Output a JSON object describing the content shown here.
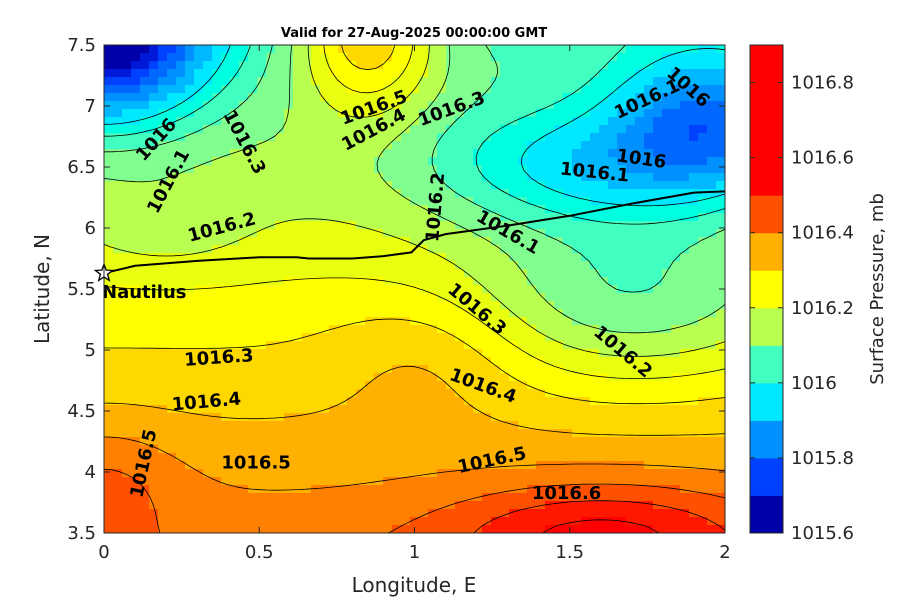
{
  "chart_data": {
    "type": "heatmap",
    "title": "Valid for 27-Aug-2025 00:00:00 GMT",
    "xlabel": "Longitude, E",
    "ylabel": "Latitude, N",
    "xlim": [
      0,
      2
    ],
    "ylim": [
      3.5,
      7.5
    ],
    "xticks": [
      "0",
      "0.5",
      "1",
      "1.5",
      "2"
    ],
    "yticks": [
      "3.5",
      "4",
      "4.5",
      "5",
      "5.5",
      "6",
      "6.5",
      "7",
      "7.5"
    ],
    "colorbar": {
      "label": "Surface Pressure, mb",
      "range": [
        1015.6,
        1016.9
      ],
      "tick_values": [
        1015.6,
        1015.8,
        1016.0,
        1016.2,
        1016.4,
        1016.6,
        1016.8
      ],
      "tick_labels": [
        "1015.6",
        "1015.8",
        "1016",
        "1016.2",
        "1016.4",
        "1016.6",
        "1016.8"
      ],
      "level_step": 0.05,
      "colors": [
        "#0000aa",
        "#0018d8",
        "#0040ff",
        "#0068ff",
        "#0090ff",
        "#00b8ff",
        "#00e8ff",
        "#00ffe0",
        "#40ffc0",
        "#80ff90",
        "#b8ff50",
        "#e8ff10",
        "#ffff00",
        "#ffd800",
        "#ffb000",
        "#ff8000",
        "#ff5000",
        "#ff1800",
        "#ff0000",
        "#ff0000"
      ]
    },
    "contour_levels": [
      1015.95,
      1016.0,
      1016.05,
      1016.1,
      1016.15,
      1016.2,
      1016.25,
      1016.3,
      1016.35,
      1016.4,
      1016.45,
      1016.5,
      1016.55,
      1016.6,
      1016.65
    ],
    "contour_labels": [
      {
        "text": "1016",
        "lon": 0.17,
        "lat": 6.72,
        "angle": -48
      },
      {
        "text": "1016.1",
        "lon": 0.21,
        "lat": 6.38,
        "angle": -62
      },
      {
        "text": "1016.3",
        "lon": 0.45,
        "lat": 6.7,
        "angle": 62
      },
      {
        "text": "1016.2",
        "lon": 0.38,
        "lat": 6.0,
        "angle": -15
      },
      {
        "text": "1016.5",
        "lon": 0.87,
        "lat": 6.98,
        "angle": -20
      },
      {
        "text": "1016.4",
        "lon": 0.87,
        "lat": 6.8,
        "angle": -28
      },
      {
        "text": "1016.3",
        "lon": 1.12,
        "lat": 6.97,
        "angle": -20
      },
      {
        "text": "1016.2",
        "lon": 1.07,
        "lat": 6.17,
        "angle": -85
      },
      {
        "text": "1016.1",
        "lon": 1.3,
        "lat": 5.96,
        "angle": 30
      },
      {
        "text": "1016.1",
        "lon": 1.75,
        "lat": 7.05,
        "angle": -25
      },
      {
        "text": "1016",
        "lon": 1.88,
        "lat": 7.15,
        "angle": 42
      },
      {
        "text": "1016",
        "lon": 1.73,
        "lat": 6.56,
        "angle": 8
      },
      {
        "text": "1016.1",
        "lon": 1.58,
        "lat": 6.45,
        "angle": 6
      },
      {
        "text": "1016.3",
        "lon": 1.2,
        "lat": 5.33,
        "angle": 40
      },
      {
        "text": "1016.2",
        "lon": 1.67,
        "lat": 4.98,
        "angle": 40
      },
      {
        "text": "1016.3",
        "lon": 0.37,
        "lat": 4.93,
        "angle": -4
      },
      {
        "text": "1016.4",
        "lon": 1.22,
        "lat": 4.7,
        "angle": 20
      },
      {
        "text": "1016.4",
        "lon": 0.33,
        "lat": 4.57,
        "angle": -5
      },
      {
        "text": "1016.5",
        "lon": 0.13,
        "lat": 4.07,
        "angle": -78
      },
      {
        "text": "1016.5",
        "lon": 0.49,
        "lat": 4.07,
        "angle": 0
      },
      {
        "text": "1016.5",
        "lon": 1.25,
        "lat": 4.09,
        "angle": -12
      },
      {
        "text": "1016.6",
        "lon": 1.49,
        "lat": 3.82,
        "angle": 0
      }
    ],
    "track": [
      [
        0.0,
        5.63
      ],
      [
        0.1,
        5.69
      ],
      [
        0.3,
        5.73
      ],
      [
        0.5,
        5.76
      ],
      [
        0.62,
        5.76
      ],
      [
        0.66,
        5.75
      ],
      [
        0.8,
        5.75
      ],
      [
        0.9,
        5.77
      ],
      [
        0.99,
        5.8
      ],
      [
        1.03,
        5.9
      ],
      [
        1.1,
        5.95
      ],
      [
        1.3,
        6.02
      ],
      [
        1.5,
        6.1
      ],
      [
        1.7,
        6.2
      ],
      [
        1.9,
        6.29
      ],
      [
        2.0,
        6.3
      ]
    ],
    "marker": {
      "label": "Nautilus",
      "lon": 0.0,
      "lat": 5.63
    }
  }
}
